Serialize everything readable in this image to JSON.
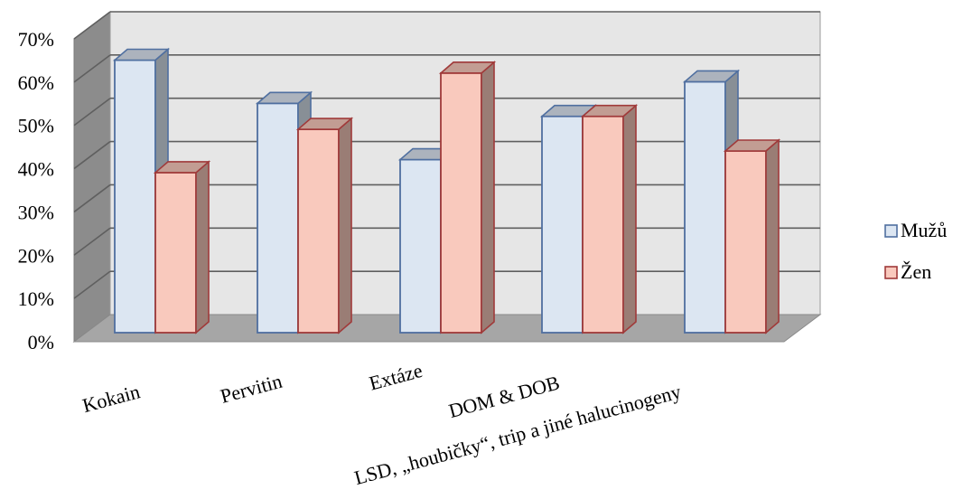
{
  "chart_data": {
    "type": "bar",
    "categories": [
      "Kokain",
      "Pervitin",
      "Extáze",
      "DOM & DOB",
      "LSD, „houbičky“, trip a jiné halucinogeny"
    ],
    "series": [
      {
        "name": "Mužů",
        "values": [
          63,
          53,
          40,
          50,
          58
        ],
        "color": "#dce6f2",
        "border": "#4f6fa0"
      },
      {
        "name": "Žen",
        "values": [
          37,
          47,
          60,
          50,
          42
        ],
        "color": "#f9c9bd",
        "border": "#a03a3a"
      }
    ],
    "yticks": [
      "0%",
      "10%",
      "20%",
      "30%",
      "40%",
      "50%",
      "60%",
      "70%"
    ],
    "ylim": [
      0,
      70
    ],
    "grid": true,
    "legend_position": "right",
    "three_d": true,
    "title": "",
    "xlabel": "",
    "ylabel": ""
  }
}
